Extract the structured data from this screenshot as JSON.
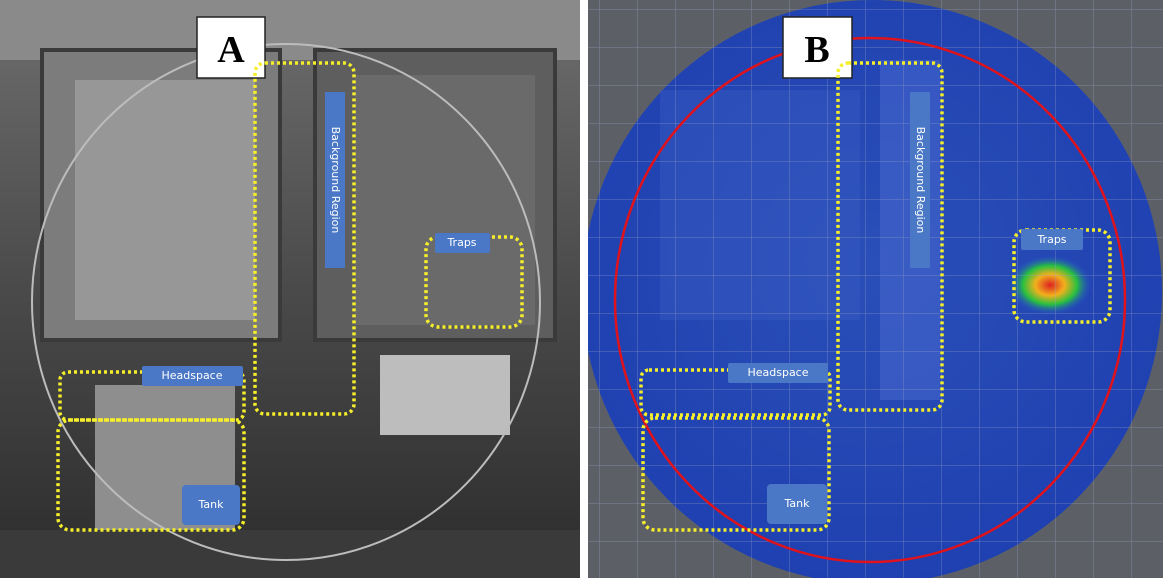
{
  "panels": [
    {
      "label": "A",
      "regions": [
        "Background Region",
        "Traps",
        "Headspace",
        "Tank"
      ]
    },
    {
      "label": "B",
      "regions": [
        "Background Region",
        "Traps",
        "Headspace",
        "Tank"
      ]
    }
  ]
}
